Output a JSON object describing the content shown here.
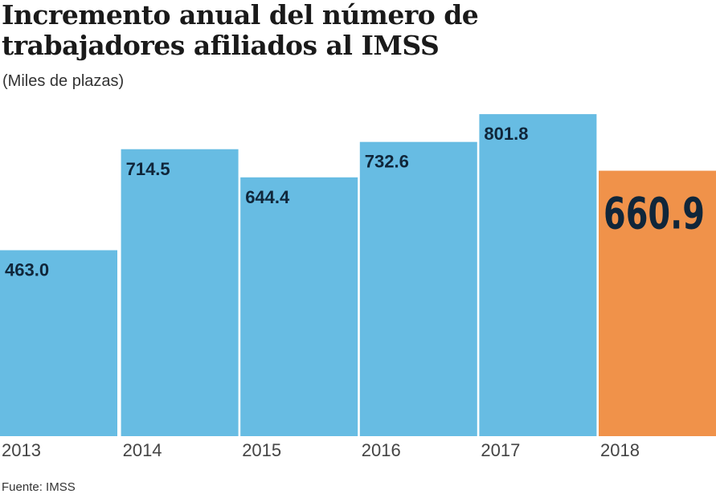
{
  "chart_data": {
    "type": "bar",
    "title": "Incremento anual del número de trabajadores afiliados al IMSS",
    "title_lines": [
      "Incremento anual del número de",
      "trabajadores afiliados al IMSS"
    ],
    "subtitle": "(Miles de plazas)",
    "source": "Fuente: IMSS",
    "xlabel": "",
    "ylabel": "Miles de plazas",
    "ylim": [
      0,
      802
    ],
    "grid": false,
    "categories": [
      "2013",
      "2014",
      "2015",
      "2016",
      "2017",
      "2018"
    ],
    "values": [
      463.0,
      714.5,
      644.4,
      732.6,
      801.8,
      660.9
    ],
    "value_labels": [
      "463.0",
      "714.5",
      "644.4",
      "732.6",
      "801.8",
      "660.9"
    ],
    "highlight_index": 5,
    "colors": {
      "bar": "#67bce3",
      "highlight": "#f0924a",
      "label": "#10263a",
      "axis_text": "#444444"
    }
  }
}
